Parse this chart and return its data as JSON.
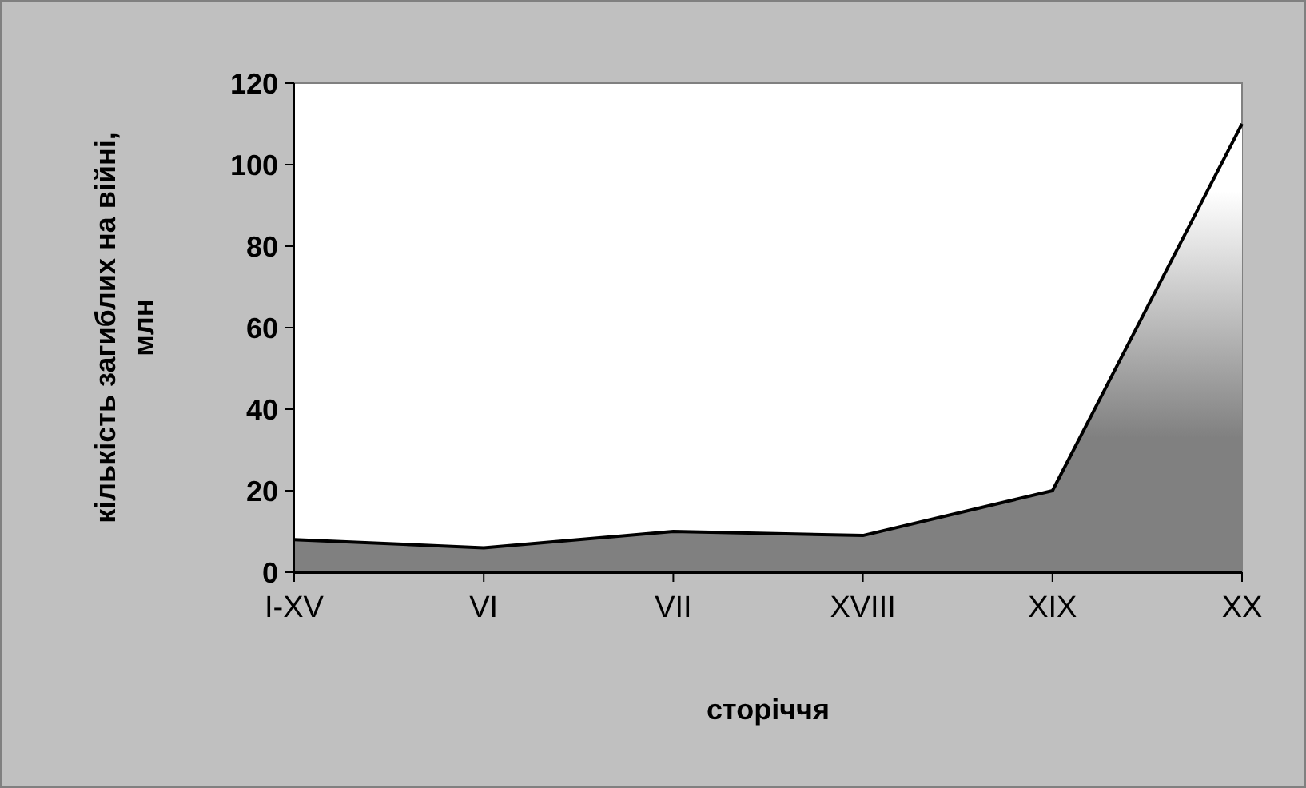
{
  "chart_data": {
    "type": "area",
    "xlabel": "сторіччя",
    "ylabel": "кількість загиблих на війні, млн",
    "categories": [
      "I-XV",
      "VI",
      "VII",
      "XVIII",
      "XIX",
      "XX"
    ],
    "series": [
      {
        "color": "#808080",
        "values": [
          8,
          6,
          10,
          9,
          20,
          110
        ]
      }
    ],
    "ylim": [
      0,
      120
    ],
    "yticks": [
      0,
      20,
      40,
      60,
      80,
      100,
      120
    ],
    "grid": false
  }
}
